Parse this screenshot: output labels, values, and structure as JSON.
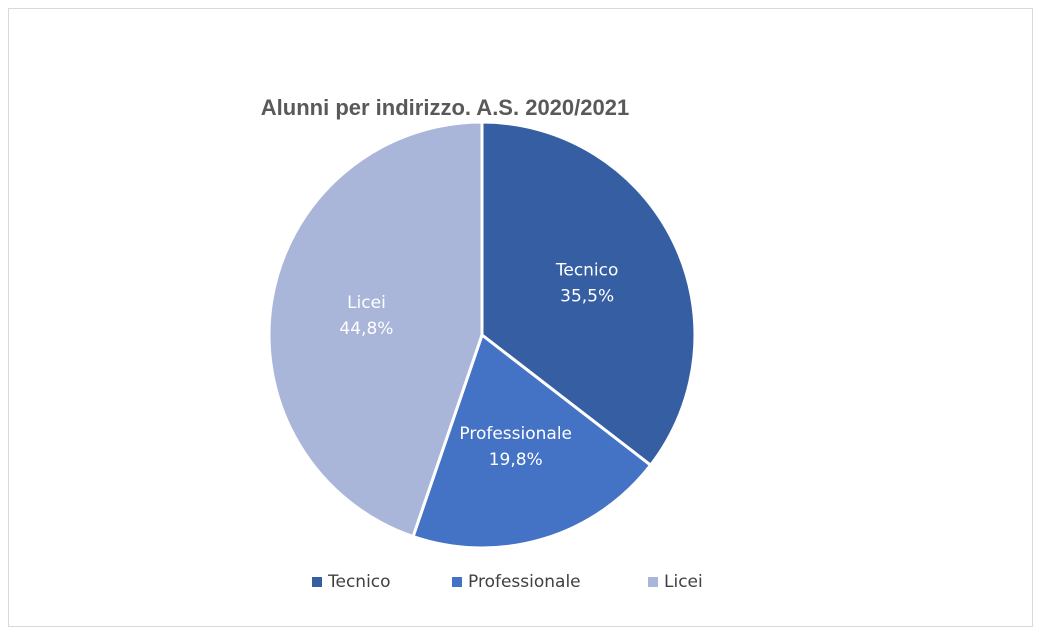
{
  "chart_data": {
    "type": "pie",
    "title": "Alunni per indirizzo. A.S. 2020/2021",
    "categories": [
      "Tecnico",
      "Professionale",
      "Licei"
    ],
    "values": [
      35.5,
      19.8,
      44.8
    ],
    "value_labels": [
      "35,5%",
      "19,8%",
      "44,8%"
    ],
    "colors": [
      "#365ea3",
      "#4472c4",
      "#a9b6d9"
    ],
    "legend": "bottom"
  }
}
